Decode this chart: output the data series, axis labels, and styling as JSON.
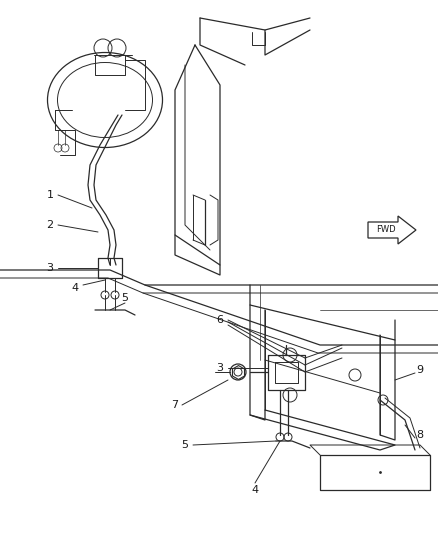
{
  "background_color": "#ffffff",
  "line_color": "#2a2a2a",
  "label_color": "#1a1a1a",
  "fig_width": 4.38,
  "fig_height": 5.33,
  "dpi": 100
}
